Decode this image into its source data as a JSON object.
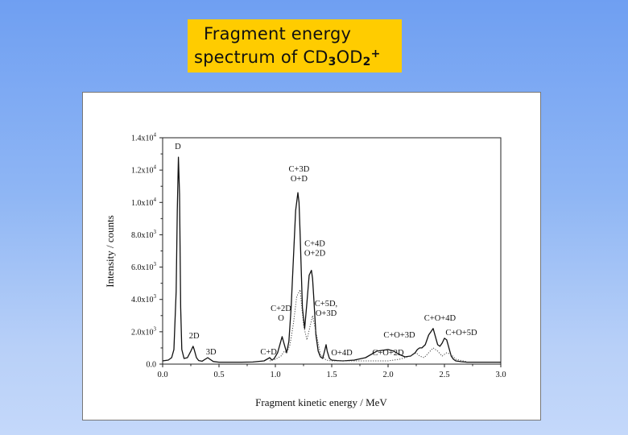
{
  "slide": {
    "title_line1": "Fragment energy",
    "title_line2_text": "spectrum of CD",
    "title_sub1": "3",
    "title_mid": "OD",
    "title_sub2": "2",
    "title_sup": "+",
    "title_color": "#ffcc00"
  },
  "chart_data": {
    "type": "line",
    "title": "",
    "xlabel": "Fragment kinetic energy / MeV",
    "ylabel": "Intensity / counts",
    "xlim": [
      0.0,
      3.0
    ],
    "ylim": [
      0,
      14000
    ],
    "x_ticks": [
      "0.0",
      "0.5",
      "1.0",
      "1.5",
      "2.0",
      "2.5",
      "3.0"
    ],
    "x_tick_values": [
      0.0,
      0.5,
      1.0,
      1.5,
      2.0,
      2.5,
      3.0
    ],
    "y_ticks": [
      {
        "base": "0.0",
        "exp": "",
        "value": 0
      },
      {
        "base": "2.0x10",
        "exp": "3",
        "value": 2000
      },
      {
        "base": "4.0x10",
        "exp": "3",
        "value": 4000
      },
      {
        "base": "6.0x10",
        "exp": "3",
        "value": 6000
      },
      {
        "base": "8.0x10",
        "exp": "3",
        "value": 8000
      },
      {
        "base": "1.0x10",
        "exp": "4",
        "value": 10000
      },
      {
        "base": "1.2x10",
        "exp": "4",
        "value": 12000
      },
      {
        "base": "1.4x10",
        "exp": "4",
        "value": 14000
      }
    ],
    "grid": false,
    "series": [
      {
        "style": "solid",
        "x": [
          0.0,
          0.05,
          0.08,
          0.1,
          0.12,
          0.13,
          0.14,
          0.15,
          0.16,
          0.17,
          0.19,
          0.22,
          0.25,
          0.27,
          0.28,
          0.3,
          0.32,
          0.35,
          0.4,
          0.42,
          0.45,
          0.5,
          0.6,
          0.7,
          0.8,
          0.9,
          0.95,
          0.97,
          0.99,
          1.02,
          1.04,
          1.06,
          1.08,
          1.1,
          1.12,
          1.14,
          1.16,
          1.18,
          1.2,
          1.21,
          1.22,
          1.24,
          1.26,
          1.28,
          1.3,
          1.32,
          1.33,
          1.34,
          1.36,
          1.38,
          1.4,
          1.42,
          1.44,
          1.45,
          1.46,
          1.48,
          1.5,
          1.55,
          1.6,
          1.7,
          1.8,
          1.9,
          2.0,
          2.05,
          2.1,
          2.15,
          2.2,
          2.24,
          2.26,
          2.28,
          2.3,
          2.33,
          2.36,
          2.38,
          2.4,
          2.42,
          2.44,
          2.46,
          2.48,
          2.5,
          2.52,
          2.54,
          2.56,
          2.58,
          2.6,
          2.65,
          2.7,
          2.8,
          2.9,
          3.0
        ],
        "y": [
          200,
          250,
          400,
          900,
          4500,
          9500,
          12800,
          10500,
          3500,
          900,
          350,
          400,
          800,
          1100,
          900,
          400,
          220,
          180,
          400,
          300,
          160,
          120,
          120,
          120,
          130,
          200,
          400,
          250,
          350,
          700,
          1200,
          1700,
          1200,
          700,
          1400,
          3500,
          6500,
          9500,
          10600,
          10000,
          8000,
          3500,
          2200,
          3800,
          5500,
          5800,
          5300,
          4200,
          1800,
          800,
          450,
          350,
          900,
          1200,
          800,
          350,
          250,
          220,
          200,
          250,
          400,
          800,
          900,
          800,
          600,
          450,
          500,
          700,
          900,
          1000,
          1000,
          1200,
          1800,
          2000,
          2200,
          1700,
          1200,
          1100,
          1300,
          1600,
          1500,
          1000,
          500,
          300,
          200,
          150,
          120,
          120,
          120,
          120
        ]
      },
      {
        "style": "dotted",
        "x": [
          0.95,
          1.0,
          1.05,
          1.08,
          1.1,
          1.13,
          1.16,
          1.19,
          1.22,
          1.25,
          1.28,
          1.31,
          1.33,
          1.36,
          1.4,
          1.45,
          1.5,
          2.0,
          2.1,
          2.2,
          2.25,
          2.28,
          2.32,
          2.36,
          2.4,
          2.44,
          2.48,
          2.52,
          2.56,
          2.6,
          2.7
        ],
        "y": [
          200,
          300,
          500,
          800,
          700,
          1200,
          2500,
          4200,
          4600,
          2400,
          1500,
          2400,
          3000,
          2000,
          600,
          250,
          200,
          200,
          300,
          500,
          700,
          500,
          400,
          700,
          1000,
          800,
          500,
          700,
          600,
          300,
          150
        ]
      }
    ],
    "annotations": [
      {
        "lines": [
          "D"
        ],
        "x": 0.135,
        "y": 13300
      },
      {
        "lines": [
          "2D"
        ],
        "x": 0.28,
        "y": 1600
      },
      {
        "lines": [
          "3D"
        ],
        "x": 0.43,
        "y": 600
      },
      {
        "lines": [
          "C+D"
        ],
        "x": 0.94,
        "y": 600
      },
      {
        "lines": [
          "C+2D",
          "O"
        ],
        "x": 1.05,
        "y": 2700
      },
      {
        "lines": [
          "C+3D",
          "O+D"
        ],
        "x": 1.21,
        "y": 11300
      },
      {
        "lines": [
          "C+4D",
          "O+2D"
        ],
        "x": 1.35,
        "y": 6700
      },
      {
        "lines": [
          "C+5D,",
          "O+3D"
        ],
        "x": 1.45,
        "y": 3000
      },
      {
        "lines": [
          "O+4D"
        ],
        "x": 1.59,
        "y": 550
      },
      {
        "lines": [
          "C+O+2D"
        ],
        "x": 2.0,
        "y": 550
      },
      {
        "lines": [
          "C+O+3D"
        ],
        "x": 2.1,
        "y": 1650
      },
      {
        "lines": [
          "C+O+4D"
        ],
        "x": 2.46,
        "y": 2700
      },
      {
        "lines": [
          "C+O+5D"
        ],
        "x": 2.65,
        "y": 1800
      }
    ]
  }
}
